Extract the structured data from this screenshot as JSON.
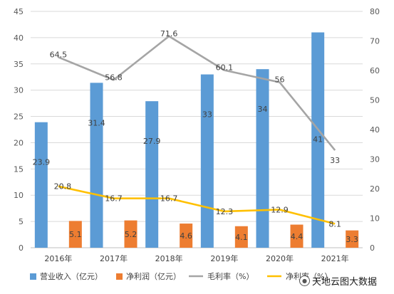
{
  "chart_data": {
    "type": "bar",
    "categories": [
      "2016年",
      "2017年",
      "2018年",
      "2019年",
      "2020年",
      "2021年"
    ],
    "series": [
      {
        "name": "营业收入（亿元）",
        "type": "bar",
        "axis": "left",
        "color": "#5b9bd5",
        "values": [
          23.9,
          31.4,
          27.9,
          33,
          34,
          41
        ],
        "labels": [
          "23.9",
          "31.4",
          "27.9",
          "33",
          "34",
          "41"
        ]
      },
      {
        "name": "净利润（亿元）",
        "type": "bar",
        "axis": "left",
        "color": "#ed7d31",
        "values": [
          5.1,
          5.2,
          4.6,
          4.1,
          4.4,
          3.3
        ],
        "labels": [
          "5.1",
          "5.2",
          "4.6",
          "4.1",
          "4.4",
          "3.3"
        ]
      },
      {
        "name": "毛利率（%）",
        "type": "line",
        "axis": "right",
        "color": "#a5a5a5",
        "values": [
          64.5,
          56.8,
          71.6,
          60.1,
          56,
          33
        ],
        "labels": [
          "64.5",
          "56.8",
          "71.6",
          "60.1",
          "56",
          "33"
        ]
      },
      {
        "name": "净利率（%）",
        "type": "line",
        "axis": "right",
        "color": "#ffc000",
        "values": [
          20.8,
          16.7,
          16.7,
          12.3,
          12.9,
          8.1
        ],
        "labels": [
          "20.8",
          "16.7",
          "16.7",
          "12.3",
          "12.9",
          "8.1"
        ]
      }
    ],
    "y_left": {
      "min": 0,
      "max": 45,
      "ticks": [
        "0",
        "5",
        "10",
        "15",
        "20",
        "25",
        "30",
        "35",
        "40",
        "45"
      ]
    },
    "y_right": {
      "min": 0,
      "max": 80,
      "ticks": [
        "0",
        "10",
        "20",
        "30",
        "40",
        "50",
        "60",
        "70",
        "80"
      ]
    },
    "grid": true,
    "legend_position": "bottom",
    "title": "",
    "xlabel": "",
    "ylabel": ""
  },
  "watermark": {
    "text": "天地云图大数据",
    "icon": "wechat-icon"
  }
}
